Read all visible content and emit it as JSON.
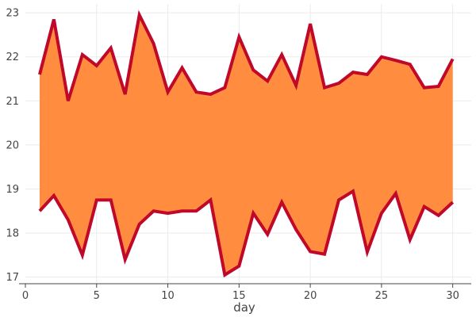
{
  "chart_data": {
    "type": "area",
    "title": "",
    "xlabel": "day",
    "ylabel": "",
    "xlim": [
      0,
      31.3
    ],
    "ylim": [
      16.85,
      23.2
    ],
    "x_ticks": [
      0,
      5,
      10,
      15,
      20,
      25,
      30
    ],
    "y_ticks": [
      17,
      18,
      19,
      20,
      21,
      22,
      23
    ],
    "grid": true,
    "legend": "none",
    "fill_color": "#ff8c3f",
    "line_color": "#c0082a",
    "x": [
      1,
      2,
      3,
      4,
      5,
      6,
      7,
      8,
      9,
      10,
      11,
      12,
      13,
      14,
      15,
      16,
      17,
      18,
      19,
      20,
      21,
      22,
      23,
      24,
      25,
      26,
      27,
      28,
      29,
      30
    ],
    "series": [
      {
        "values": [
          21.6,
          22.85,
          21.0,
          22.05,
          21.8,
          22.2,
          21.15,
          22.95,
          22.3,
          21.2,
          21.75,
          21.2,
          21.15,
          21.3,
          22.45,
          21.7,
          21.45,
          22.05,
          21.35,
          22.75,
          21.3,
          21.4,
          21.65,
          21.6,
          22.0,
          21.92,
          21.83,
          21.3,
          21.33,
          21.95
        ]
      },
      {
        "values": [
          18.5,
          18.85,
          18.3,
          17.5,
          18.75,
          18.75,
          17.4,
          18.2,
          18.5,
          18.45,
          18.5,
          18.5,
          18.75,
          17.05,
          17.25,
          18.45,
          17.97,
          18.7,
          18.08,
          17.58,
          17.52,
          18.75,
          18.95,
          17.57,
          18.45,
          18.9,
          17.85,
          18.6,
          18.4,
          18.7
        ]
      }
    ]
  }
}
